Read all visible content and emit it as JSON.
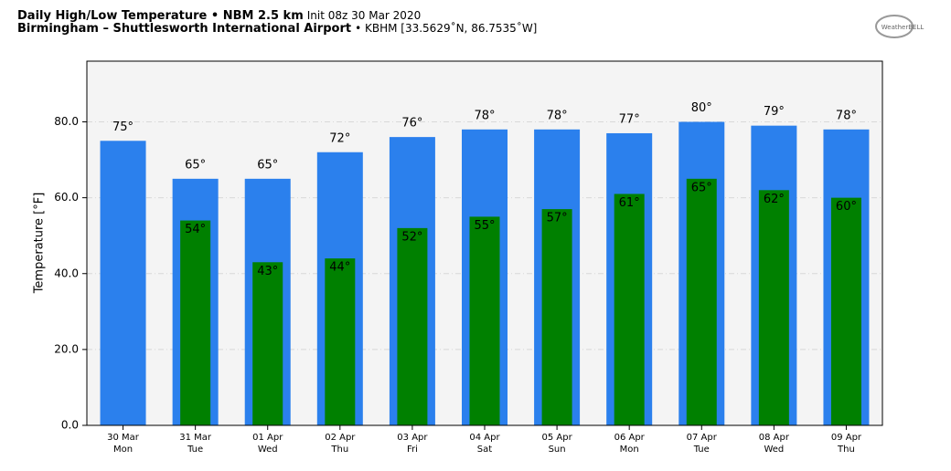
{
  "chart_data": {
    "type": "bar",
    "title": "Daily High/Low Temperature • NBM 2.5 km",
    "subtitle": "Init 08z 30 Mar 2020",
    "location": "Birmingham – Shuttlesworth International Airport",
    "station": "• KBHM [33.5629˚N, 86.7535˚W]",
    "logo": "WeatherBELL",
    "y_label": "Temperature [°F]",
    "categories": [
      "30 Mar",
      "31 Mar",
      "01 Apr",
      "02 Apr",
      "03 Apr",
      "04 Apr",
      "05 Apr",
      "06 Apr",
      "07 Apr",
      "08 Apr",
      "09 Apr"
    ],
    "weekdays": [
      "Mon",
      "Tue",
      "Wed",
      "Thu",
      "Fri",
      "Sat",
      "Sun",
      "Mon",
      "Tue",
      "Wed",
      "Thu"
    ],
    "series": [
      {
        "color": "#2b80ed",
        "values": [
          75,
          65,
          65,
          72,
          76,
          78,
          78,
          77,
          80,
          79,
          78
        ],
        "value_labels": [
          "75°",
          "65°",
          "65°",
          "72°",
          "76°",
          "78°",
          "78°",
          "77°",
          "80°",
          "79°",
          "78°"
        ]
      },
      {
        "color": "#008000",
        "values": [
          null,
          54,
          43,
          44,
          52,
          55,
          57,
          61,
          65,
          62,
          60
        ],
        "value_labels": [
          null,
          "54°",
          "43°",
          "44°",
          "52°",
          "55°",
          "57°",
          "61°",
          "65°",
          "62°",
          "60°"
        ]
      }
    ],
    "ylim": [
      0,
      96
    ],
    "yticks": [
      {
        "value": 0,
        "label": "0.0"
      },
      {
        "value": 20,
        "label": "20.0"
      },
      {
        "value": 40,
        "label": "40.0"
      },
      {
        "value": 60,
        "label": "60.0"
      },
      {
        "value": 80,
        "label": "80.0"
      }
    ],
    "grid": true
  }
}
